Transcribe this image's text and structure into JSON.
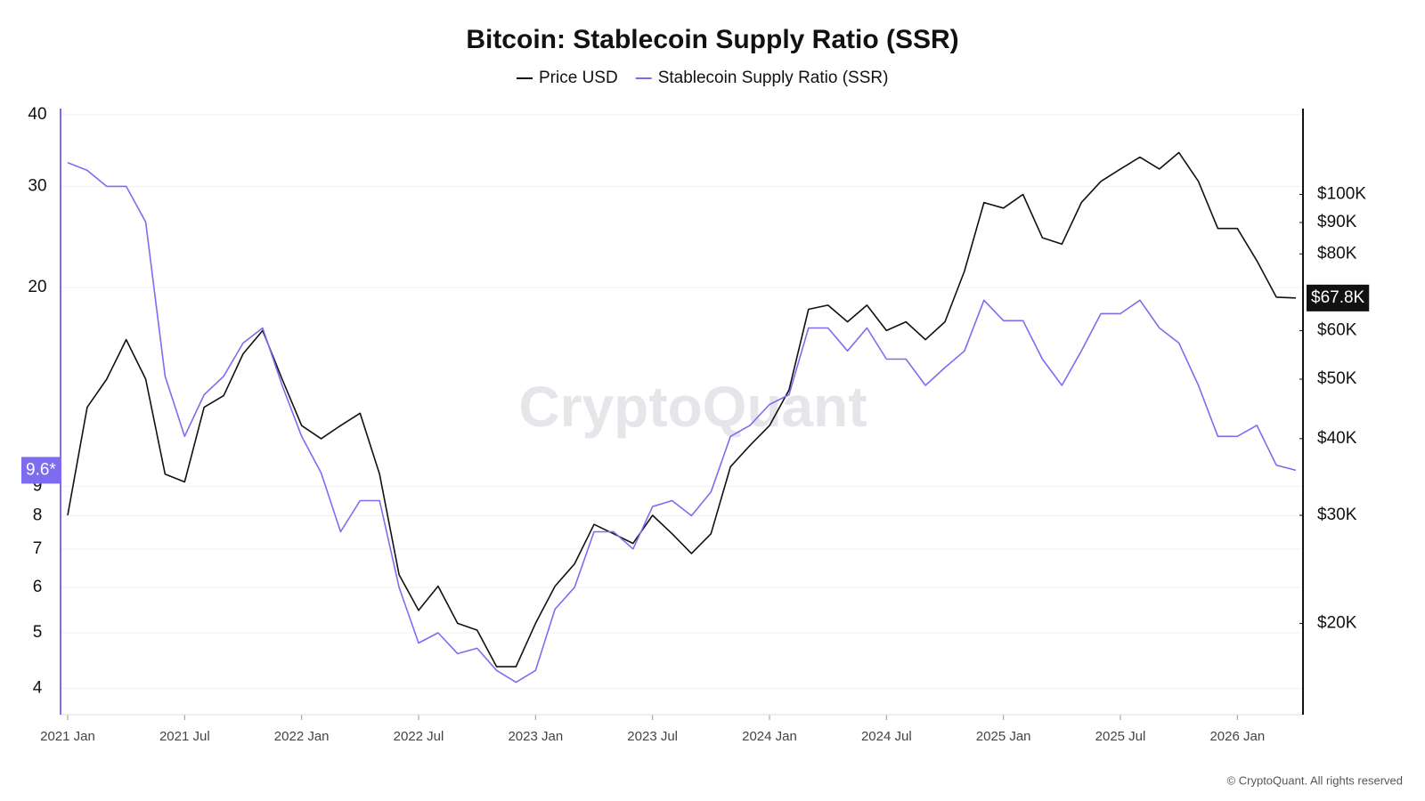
{
  "chart_data": {
    "type": "line",
    "title": "Bitcoin: Stablecoin Supply Ratio (SSR)",
    "watermark": "CryptoQuant",
    "footer": "© CryptoQuant. All rights reserved",
    "legend": "top",
    "grid": true,
    "x": [
      "2021-01",
      "2021-02",
      "2021-03",
      "2021-04",
      "2021-05",
      "2021-06",
      "2021-07",
      "2021-08",
      "2021-09",
      "2021-10",
      "2021-11",
      "2021-12",
      "2022-01",
      "2022-02",
      "2022-03",
      "2022-04",
      "2022-05",
      "2022-06",
      "2022-07",
      "2022-08",
      "2022-09",
      "2022-10",
      "2022-11",
      "2022-12",
      "2023-01",
      "2023-02",
      "2023-03",
      "2023-04",
      "2023-05",
      "2023-06",
      "2023-07",
      "2023-08",
      "2023-09",
      "2023-10",
      "2023-11",
      "2023-12",
      "2024-01",
      "2024-02",
      "2024-03",
      "2024-04",
      "2024-05",
      "2024-06",
      "2024-07",
      "2024-08",
      "2024-09",
      "2024-10",
      "2024-11",
      "2024-12",
      "2025-01",
      "2025-02",
      "2025-03",
      "2025-04",
      "2025-05",
      "2025-06",
      "2025-07",
      "2025-08",
      "2025-09",
      "2025-10",
      "2025-11",
      "2025-12",
      "2026-01",
      "2026-02",
      "2026-03",
      "2026-04"
    ],
    "xlim": [
      "2021-01",
      "2026-04"
    ],
    "xticks": [
      {
        "value": "2021-01",
        "label": "2021 Jan"
      },
      {
        "value": "2021-07",
        "label": "2021 Jul"
      },
      {
        "value": "2022-01",
        "label": "2022 Jan"
      },
      {
        "value": "2022-07",
        "label": "2022 Jul"
      },
      {
        "value": "2023-01",
        "label": "2023 Jan"
      },
      {
        "value": "2023-07",
        "label": "2023 Jul"
      },
      {
        "value": "2024-01",
        "label": "2024 Jan"
      },
      {
        "value": "2024-07",
        "label": "2024 Jul"
      },
      {
        "value": "2025-01",
        "label": "2025 Jan"
      },
      {
        "value": "2025-07",
        "label": "2025 Jul"
      },
      {
        "value": "2026-01",
        "label": "2026 Jan"
      }
    ],
    "ylim": [
      3.6,
      41
    ],
    "ylog": true,
    "yticks": [
      4,
      5,
      6,
      7,
      8,
      9,
      20,
      30,
      40
    ],
    "y2lim": [
      14200,
      138000
    ],
    "y2log": true,
    "y2ticks": [
      {
        "value": 20000,
        "label": "$20K"
      },
      {
        "value": 30000,
        "label": "$30K"
      },
      {
        "value": 40000,
        "label": "$40K"
      },
      {
        "value": 50000,
        "label": "$50K"
      },
      {
        "value": 60000,
        "label": "$60K"
      },
      {
        "value": 80000,
        "label": "$80K"
      },
      {
        "value": 90000,
        "label": "$90K"
      },
      {
        "value": 100000,
        "label": "$100K"
      }
    ],
    "series": [
      {
        "name": "Price USD",
        "color": "#111111",
        "axis": "y2",
        "last_value_label": "$67.8K",
        "values": [
          30000,
          45000,
          50000,
          58000,
          50000,
          35000,
          34000,
          45000,
          47000,
          55000,
          60000,
          50000,
          42000,
          40000,
          42000,
          44000,
          35000,
          24000,
          21000,
          23000,
          20000,
          19500,
          17000,
          17000,
          20000,
          23000,
          25000,
          29000,
          28000,
          27000,
          30000,
          28000,
          26000,
          28000,
          36000,
          39000,
          42000,
          48000,
          65000,
          66000,
          62000,
          66000,
          60000,
          62000,
          58000,
          62000,
          75000,
          97000,
          95000,
          100000,
          85000,
          83000,
          97000,
          105000,
          110000,
          115000,
          110000,
          117000,
          105000,
          88000,
          88000,
          78000,
          68000,
          67800
        ]
      },
      {
        "name": "Stablecoin Supply Ratio (SSR)",
        "color": "#7e6cf0",
        "last_value_label": "9.6*",
        "values": [
          33,
          32,
          30,
          30,
          26,
          14,
          11,
          13,
          14,
          16,
          17,
          13.5,
          11,
          9.5,
          7.5,
          8.5,
          8.5,
          6,
          4.8,
          5,
          4.6,
          4.7,
          4.3,
          4.1,
          4.3,
          5.5,
          6,
          7.5,
          7.5,
          7,
          8.3,
          8.5,
          8,
          8.8,
          11,
          11.5,
          12.5,
          13,
          17,
          17,
          15.5,
          17,
          15,
          15,
          13.5,
          14.5,
          15.5,
          19,
          17.5,
          17.5,
          15,
          13.5,
          15.5,
          18,
          18,
          19,
          17,
          16,
          13.5,
          11,
          11,
          11.5,
          9.8,
          9.6
        ]
      }
    ]
  }
}
